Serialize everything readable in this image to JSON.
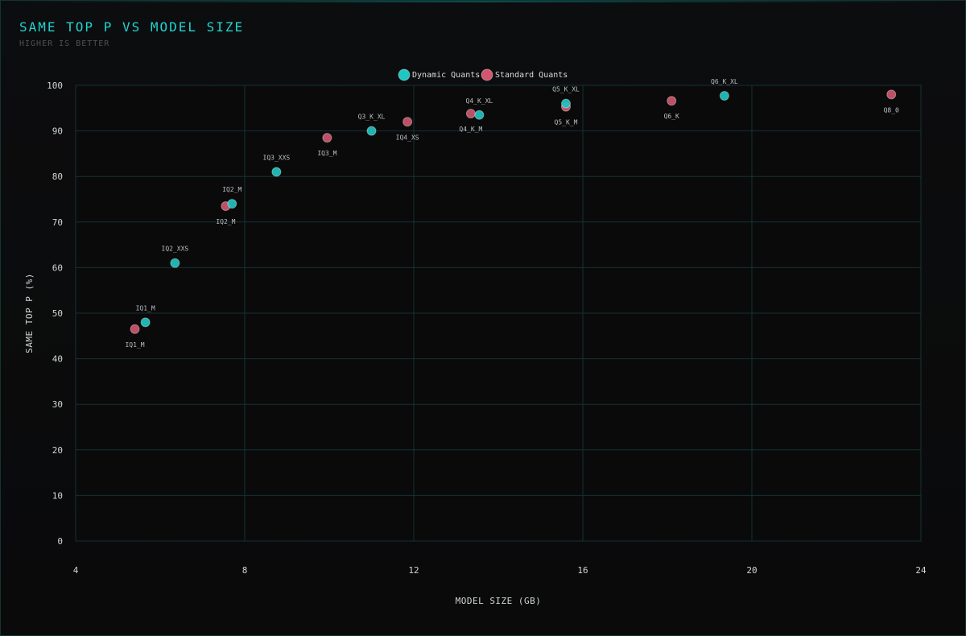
{
  "header": {
    "title": "SAME TOP P VS MODEL SIZE",
    "subtitle": "HIGHER IS BETTER"
  },
  "colors": {
    "dynamic": "#1fc7c4",
    "standard": "#d2566e",
    "grid": "#143232",
    "title": "#22d3cf"
  },
  "chart_data": {
    "type": "scatter",
    "xlabel": "MODEL SIZE (GB)",
    "ylabel": "SAME TOP P (%)",
    "xlim": [
      4,
      24
    ],
    "ylim": [
      0,
      100
    ],
    "x_ticks": [
      4,
      8,
      12,
      16,
      20,
      24
    ],
    "y_ticks": [
      0,
      10,
      20,
      30,
      40,
      50,
      60,
      70,
      80,
      90,
      100
    ],
    "grid": true,
    "legend_position": "top-center",
    "series": [
      {
        "name": "Dynamic Quants",
        "color": "#1fc7c4",
        "points": [
          {
            "label": "IQ1_M",
            "x": 5.65,
            "y": 48.0
          },
          {
            "label": "IQ2_XXS",
            "x": 6.35,
            "y": 61.0
          },
          {
            "label": "IQ2_M",
            "x": 7.7,
            "y": 74.0
          },
          {
            "label": "IQ3_XXS",
            "x": 8.75,
            "y": 81.0
          },
          {
            "label": "Q3_K_XL",
            "x": 11.0,
            "y": 90.0
          },
          {
            "label": "Q4_K_XL",
            "x": 13.55,
            "y": 93.5
          },
          {
            "label": "Q5_K_XL",
            "x": 15.6,
            "y": 96.0
          },
          {
            "label": "Q6_K_XL",
            "x": 19.35,
            "y": 97.7
          }
        ]
      },
      {
        "name": "Standard Quants",
        "color": "#d2566e",
        "points": [
          {
            "label": "IQ1_M",
            "x": 5.4,
            "y": 46.5
          },
          {
            "label": "IQ2_M",
            "x": 7.55,
            "y": 73.5
          },
          {
            "label": "IQ3_M",
            "x": 9.95,
            "y": 88.5
          },
          {
            "label": "IQ4_XS",
            "x": 11.85,
            "y": 92.0
          },
          {
            "label": "Q4_K_M",
            "x": 13.35,
            "y": 93.8
          },
          {
            "label": "Q5_K_M",
            "x": 15.6,
            "y": 95.3
          },
          {
            "label": "Q6_K",
            "x": 18.1,
            "y": 96.6
          },
          {
            "label": "Q8_0",
            "x": 23.3,
            "y": 98.0
          }
        ]
      }
    ]
  }
}
